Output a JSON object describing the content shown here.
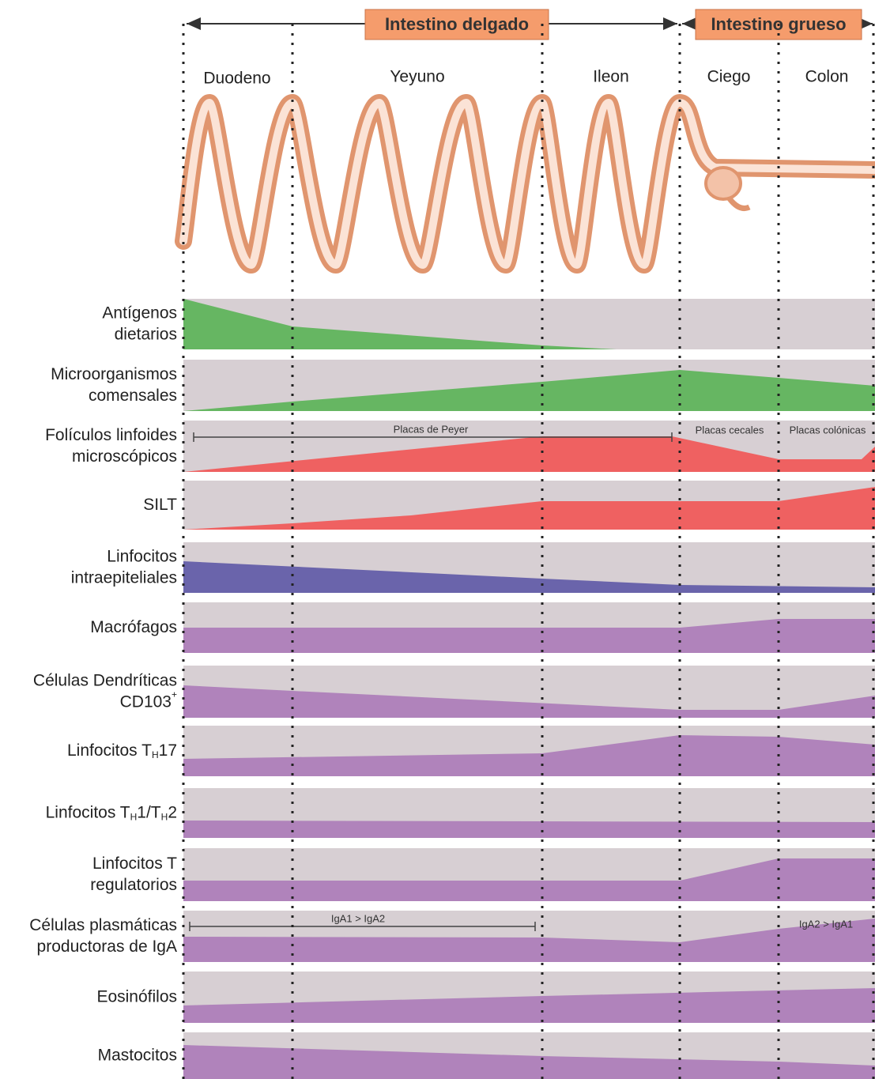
{
  "header": {
    "small_intestine": "Intestino delgado",
    "large_intestine": "Intestino grueso"
  },
  "segments": [
    "Duodeno",
    "Yeyuno",
    "Ileon",
    "Ciego",
    "Colon"
  ],
  "rows": [
    {
      "label": [
        [
          {
            "text": "Antígenos"
          }
        ],
        [
          {
            "text": "dietarios"
          }
        ]
      ]
    },
    {
      "label": [
        [
          {
            "text": "Microorganismos"
          }
        ],
        [
          {
            "text": "comensales"
          }
        ]
      ]
    },
    {
      "label": [
        [
          {
            "text": "Folículos linfoides"
          }
        ],
        [
          {
            "text": "microscópicos"
          }
        ]
      ]
    },
    {
      "label": [
        [
          {
            "text": "SILT"
          }
        ]
      ]
    },
    {
      "label": [
        [
          {
            "text": "Linfocitos"
          }
        ],
        [
          {
            "text": "intraepiteliales"
          }
        ]
      ]
    },
    {
      "label": [
        [
          {
            "text": "Macrófagos"
          }
        ]
      ]
    },
    {
      "label": [
        [
          {
            "text": "Células Dendríticas"
          }
        ],
        [
          {
            "text": "CD103"
          },
          {
            "text": "+",
            "style": "sup"
          }
        ]
      ]
    },
    {
      "label": [
        [
          {
            "text": "Linfocitos T"
          },
          {
            "text": "H",
            "style": "sub"
          },
          {
            "text": "17"
          }
        ]
      ]
    },
    {
      "label": [
        [
          {
            "text": "Linfocitos T"
          },
          {
            "text": "H",
            "style": "sub"
          },
          {
            "text": "1/T"
          },
          {
            "text": "H",
            "style": "sub"
          },
          {
            "text": "2"
          }
        ]
      ]
    },
    {
      "label": [
        [
          {
            "text": "Linfocitos T"
          }
        ],
        [
          {
            "text": "regulatorios"
          }
        ]
      ]
    },
    {
      "label": [
        [
          {
            "text": "Células plasmáticas"
          }
        ],
        [
          {
            "text": "productoras de IgA"
          }
        ]
      ]
    },
    {
      "label": [
        [
          {
            "text": "Eosinófilos"
          }
        ]
      ]
    },
    {
      "label": [
        [
          {
            "text": "Mastocitos"
          }
        ]
      ]
    }
  ],
  "annotations": {
    "peyer": "Placas de Peyer",
    "cecal": "Placas cecales",
    "colonic": "Placas colónicas",
    "iga_small": "IgA1 > IgA2",
    "iga_large": "IgA2 > IgA1"
  }
}
